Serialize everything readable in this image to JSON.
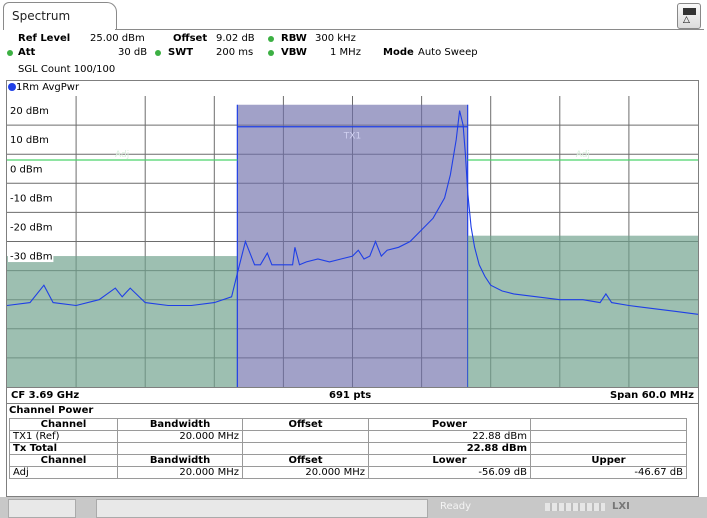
{
  "tab": {
    "label": "Spectrum"
  },
  "header": {
    "ref_level_label": "Ref Level",
    "ref_level_value": "25.00 dBm",
    "offset_label": "Offset",
    "offset_value": "9.02 dB",
    "rbw_label": "RBW",
    "rbw_value": "300 kHz",
    "att_label": "Att",
    "att_value": "30 dB",
    "swt_label": "SWT",
    "swt_value": "200 ms",
    "vbw_label": "VBW",
    "vbw_value": "1 MHz",
    "mode_label": "Mode",
    "mode_value": "Auto Sweep",
    "sgl_count": "SGL Count 100/100",
    "dot_color": "#3cb043"
  },
  "trace": {
    "label": "1Rm AvgPwr",
    "color": "#1f3fe6"
  },
  "chart_data": {
    "type": "line",
    "y_ticks": [
      "20 dBm",
      "10 dBm",
      "0 dBm",
      "-10 dBm",
      "-20 dBm",
      "-30 dBm"
    ],
    "ylim": [
      -75,
      25
    ],
    "xlim": [
      -30,
      30
    ],
    "grid": true,
    "channels": [
      {
        "name": "Adj",
        "x_start": -30,
        "x_end": -10,
        "level": -30
      },
      {
        "name": "TX1",
        "x_start": -10,
        "x_end": 10,
        "level": 22
      },
      {
        "name": "Adj",
        "x_start": 10,
        "x_end": 30,
        "level": -23
      }
    ],
    "limit_line_dbm": 3,
    "series": [
      {
        "x": [
          -30,
          -28,
          -26.8,
          -26,
          -24,
          -22,
          -20.6,
          -20,
          -19.3,
          -18,
          -16,
          -14,
          -12,
          -10.5,
          -10,
          -9.3,
          -8.5,
          -8,
          -7.4,
          -7,
          -6,
          -5.2,
          -5,
          -4.6,
          -4,
          -3,
          -2,
          -1,
          0,
          0.5,
          1,
          1.5,
          2,
          2.5,
          3,
          4,
          5,
          6,
          7,
          8,
          8.5,
          9,
          9.3,
          9.6,
          9.8,
          10,
          10.3,
          10.6,
          11,
          11.5,
          12,
          13,
          14,
          16,
          18,
          20,
          21.5,
          22,
          22.5,
          24,
          26,
          28,
          30
        ],
        "y": [
          -47,
          -46,
          -40,
          -46,
          -47,
          -45,
          -41,
          -44,
          -41,
          -46,
          -47,
          -47,
          -46,
          -44,
          -36,
          -25,
          -33,
          -33,
          -29,
          -33,
          -33,
          -33,
          -27,
          -33,
          -32,
          -31,
          -32,
          -31,
          -30,
          -28,
          -31,
          -30,
          -25,
          -30,
          -28,
          -27,
          -25,
          -21,
          -17,
          -10,
          -2,
          10,
          20,
          15,
          5,
          -8,
          -20,
          -27,
          -33,
          -37,
          -40,
          -42,
          -43,
          -44,
          -45,
          -45,
          -46,
          -43,
          -46,
          -47,
          -48,
          -49,
          -50
        ]
      }
    ]
  },
  "footer": {
    "cf": "CF 3.69 GHz",
    "pts": "691 pts",
    "span": "Span 60.0 MHz"
  },
  "channel_power": {
    "title": "Channel Power",
    "headers1": [
      "Channel",
      "Bandwidth",
      "Offset",
      "Power",
      ""
    ],
    "row_tx1": {
      "channel": "TX1 (Ref)",
      "bandwidth": "20.000 MHz",
      "offset": "",
      "power": "22.88 dBm",
      "extra": ""
    },
    "row_total": {
      "channel": "Tx Total",
      "bandwidth": "",
      "offset": "",
      "power": "22.88 dBm",
      "extra": ""
    },
    "headers2": [
      "Channel",
      "Bandwidth",
      "Offset",
      "Lower",
      "Upper"
    ],
    "row_adj": {
      "channel": "Adj",
      "bandwidth": "20.000 MHz",
      "offset": "20.000 MHz",
      "lower": "-56.09 dB",
      "upper": "-46.67 dB"
    }
  },
  "status": {
    "ready": "Ready",
    "lxi": "LXI"
  }
}
